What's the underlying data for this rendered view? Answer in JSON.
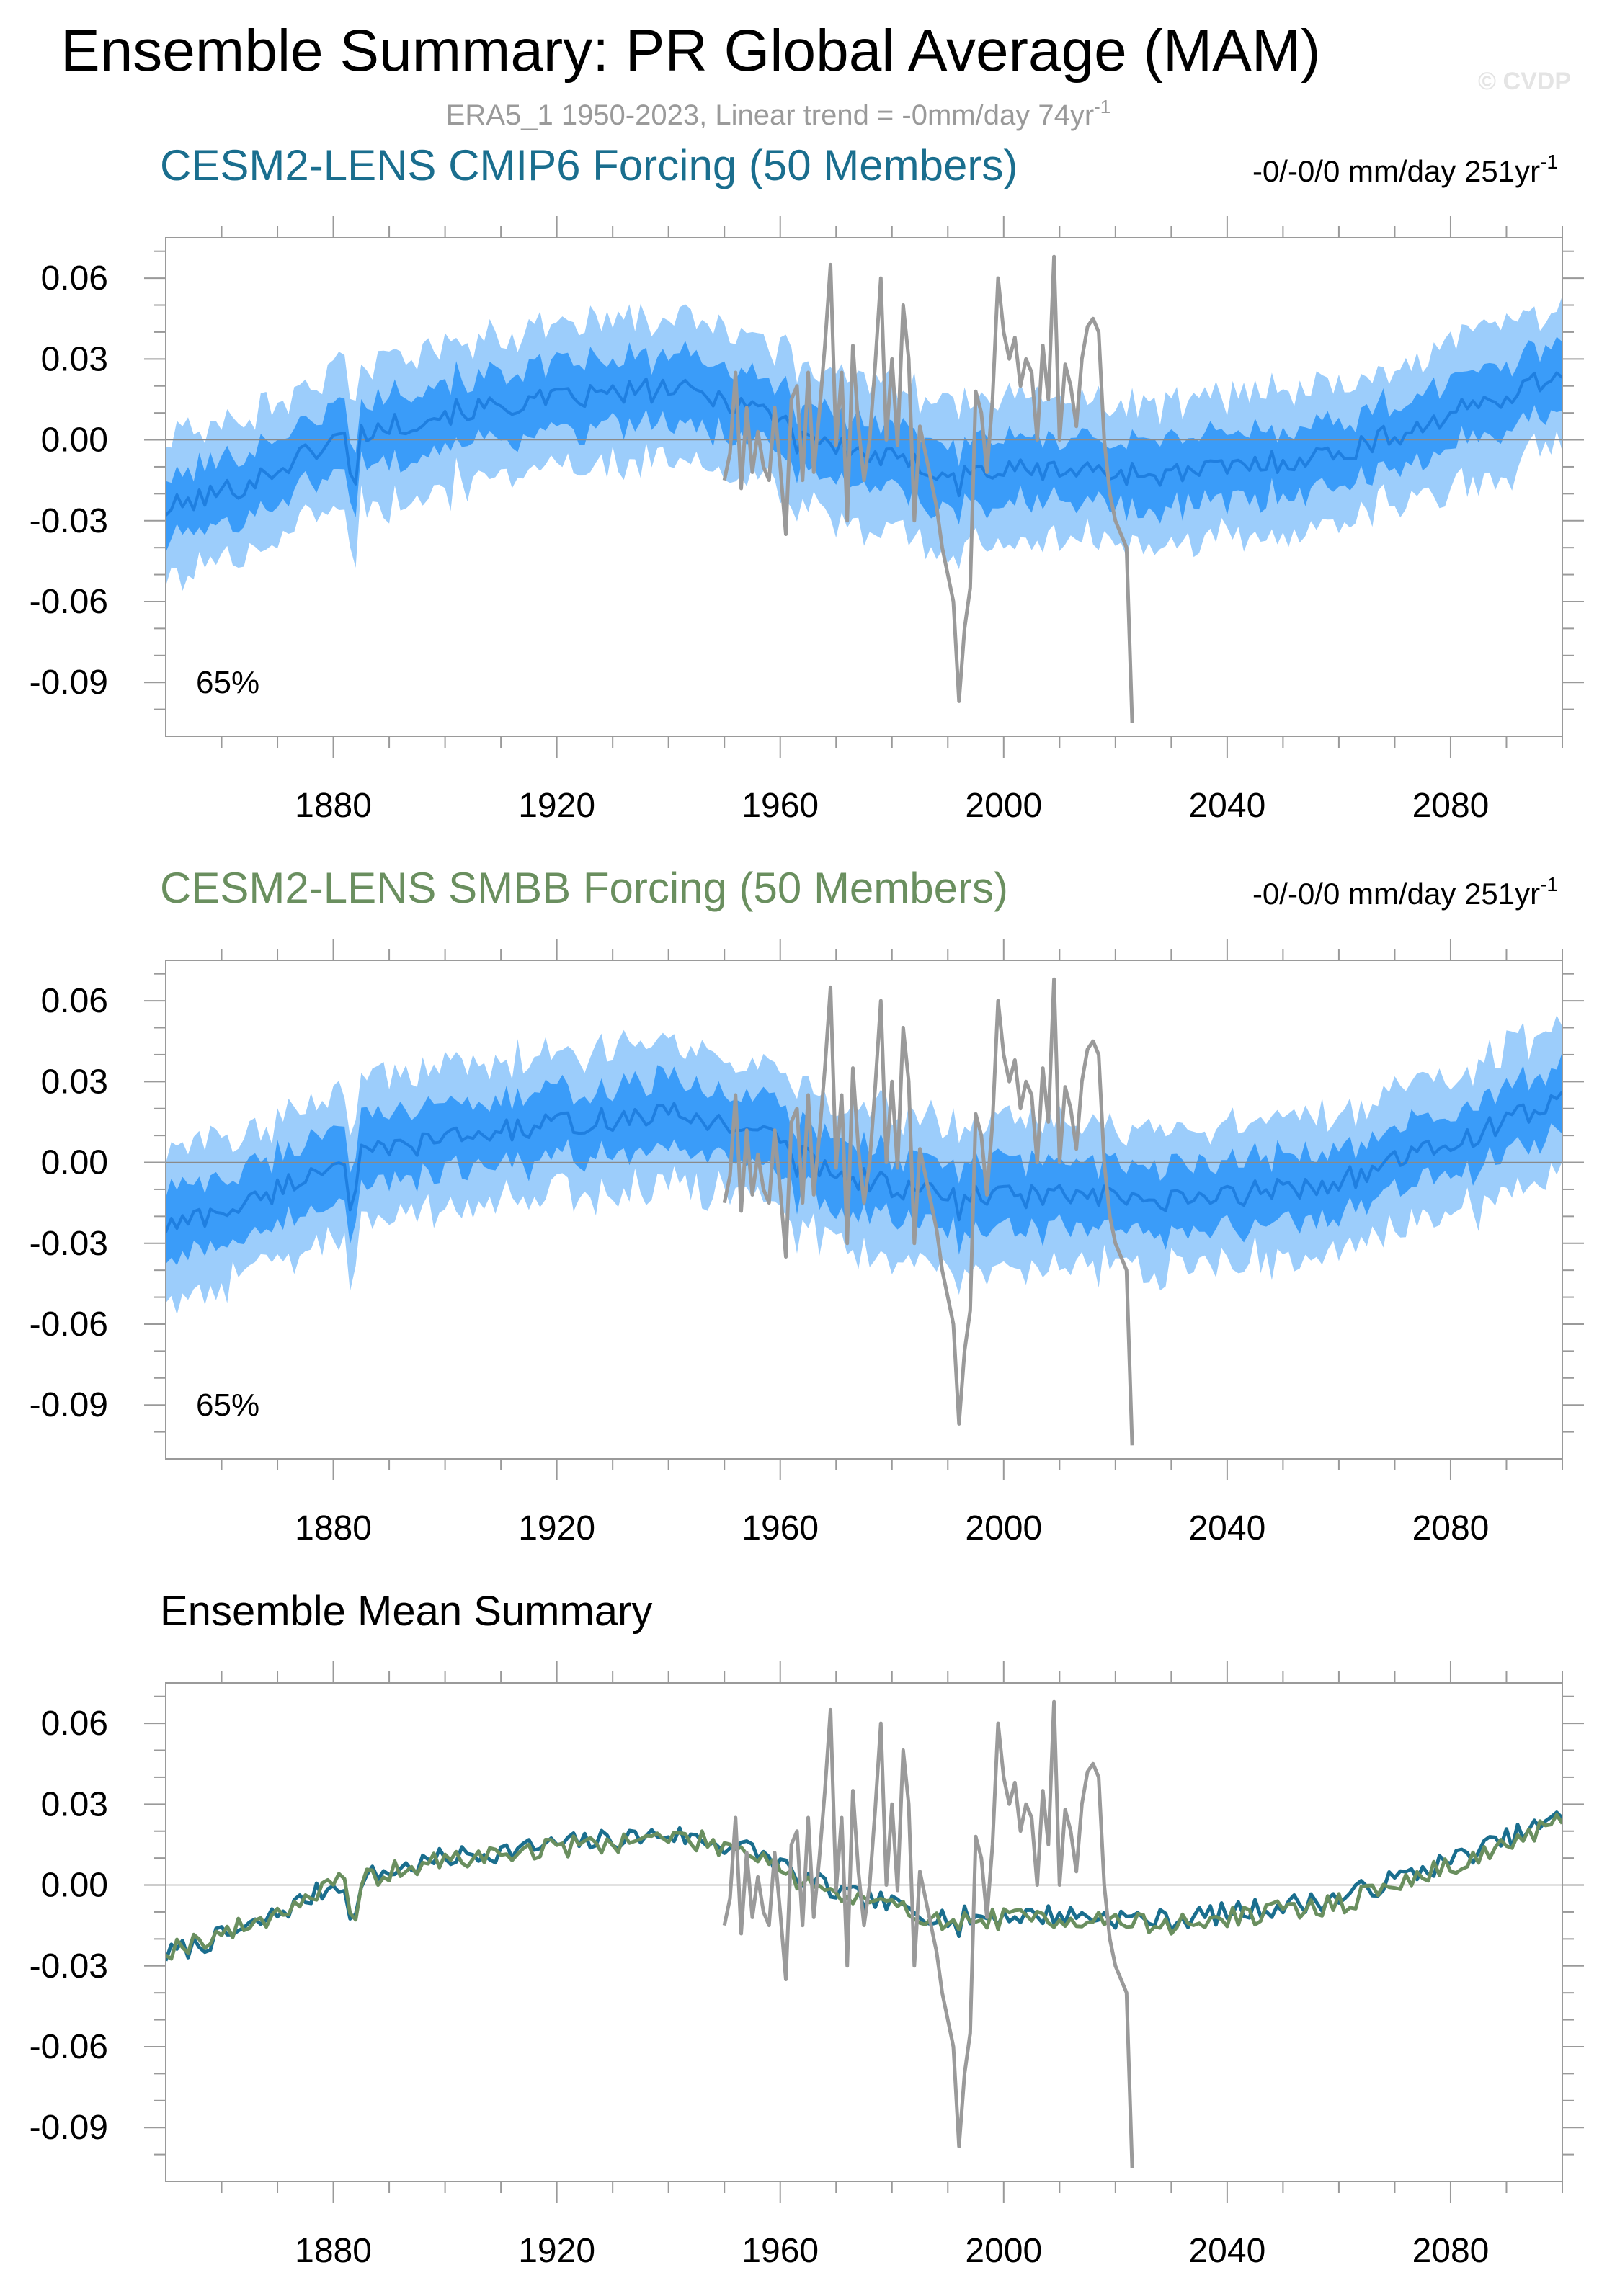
{
  "figure": {
    "title": "Ensemble Summary: PR Global Average (MAM)",
    "watermark": "© CVDP",
    "obs_label": "ERA5_1 1950-2023, Linear trend = -0mm/day 74yr",
    "obs_label_sup": "-1"
  },
  "colors": {
    "band_outer": "#9ccdfb",
    "band_inner": "#3a9cf9",
    "ens_mean": "#1f7fe0",
    "obs": "#9a9a9a",
    "cmip6": "#1a6e8e",
    "smbb": "#6a8f5f",
    "axis": "#9a9a9a",
    "zero": "#8a8a8a"
  },
  "chart_data": [
    {
      "type": "area",
      "title": "CESM2-LENS CMIP6 Forcing (50 Members)",
      "trend_label": "-0/-0/0 mm/day 251yr",
      "trend_sup": "-1",
      "percent_label": "65%",
      "xlabel": "",
      "ylabel": "",
      "xlim": [
        1850,
        2100
      ],
      "ylim": [
        -0.11,
        0.075
      ],
      "xticks": [
        1880,
        1920,
        1960,
        2000,
        2040,
        2080
      ],
      "xtick_labels": [
        "1880",
        "1920",
        "1960",
        "2000",
        "2040",
        "2080"
      ],
      "yticks": [
        0.06,
        0.03,
        0.0,
        -0.03,
        -0.06,
        -0.09
      ],
      "ytick_labels": [
        "0.06",
        "0.03",
        "0.00",
        "-0.03",
        "-0.06",
        "-0.09"
      ],
      "ensemble_mean_keypoints": {
        "x": [
          1850,
          1865,
          1880,
          1900,
          1920,
          1940,
          1955,
          1970,
          1990,
          2010,
          2030,
          2060,
          2080,
          2100
        ],
        "y": [
          -0.026,
          -0.016,
          0.0,
          0.01,
          0.015,
          0.019,
          0.013,
          -0.003,
          -0.012,
          -0.011,
          -0.013,
          -0.005,
          0.009,
          0.025
        ]
      },
      "band_halfwidth": {
        "inner": 0.012,
        "outer": 0.025
      },
      "series": [
        {
          "name": "Ensemble mean",
          "color_key": "ens_mean"
        },
        {
          "name": "ERA5_1",
          "color_key": "obs"
        }
      ]
    },
    {
      "type": "area",
      "title": "CESM2-LENS SMBB Forcing (50 Members)",
      "trend_label": "-0/-0/0 mm/day 251yr",
      "trend_sup": "-1",
      "percent_label": "65%",
      "xlabel": "",
      "ylabel": "",
      "xlim": [
        1850,
        2100
      ],
      "ylim": [
        -0.11,
        0.075
      ],
      "xticks": [
        1880,
        1920,
        1960,
        2000,
        2040,
        2080
      ],
      "xtick_labels": [
        "1880",
        "1920",
        "1960",
        "2000",
        "2040",
        "2080"
      ],
      "yticks": [
        0.06,
        0.03,
        0.0,
        -0.03,
        -0.06,
        -0.09
      ],
      "ytick_labels": [
        "0.06",
        "0.03",
        "0.00",
        "-0.03",
        "-0.06",
        "-0.09"
      ],
      "ensemble_mean_keypoints": {
        "x": [
          1850,
          1865,
          1880,
          1900,
          1920,
          1940,
          1955,
          1970,
          1990,
          2010,
          2030,
          2060,
          2080,
          2100
        ],
        "y": [
          -0.024,
          -0.015,
          0.0,
          0.009,
          0.014,
          0.018,
          0.013,
          -0.004,
          -0.013,
          -0.012,
          -0.015,
          -0.007,
          0.007,
          0.023
        ]
      },
      "band_halfwidth": {
        "inner": 0.012,
        "outer": 0.025
      },
      "series": [
        {
          "name": "Ensemble mean",
          "color_key": "ens_mean"
        },
        {
          "name": "ERA5_1",
          "color_key": "obs"
        }
      ]
    },
    {
      "type": "line",
      "title": "Ensemble Mean Summary",
      "xlabel": "",
      "ylabel": "",
      "xlim": [
        1850,
        2100
      ],
      "ylim": [
        -0.11,
        0.075
      ],
      "xticks": [
        1880,
        1920,
        1960,
        2000,
        2040,
        2080
      ],
      "xtick_labels": [
        "1880",
        "1920",
        "1960",
        "2000",
        "2040",
        "2080"
      ],
      "yticks": [
        0.06,
        0.03,
        0.0,
        -0.03,
        -0.06,
        -0.09
      ],
      "ytick_labels": [
        "0.06",
        "0.03",
        "0.00",
        "-0.03",
        "-0.06",
        "-0.09"
      ],
      "series": [
        {
          "name": "CESM2-LENS CMIP6 Forcing",
          "color_key": "cmip6"
        },
        {
          "name": "CESM2-LENS SMBB Forcing",
          "color_key": "smbb"
        },
        {
          "name": "ERA5_1",
          "color_key": "obs"
        }
      ]
    }
  ],
  "observations": {
    "name": "ERA5_1",
    "years": [
      1950,
      1951,
      1952,
      1953,
      1954,
      1955,
      1956,
      1957,
      1958,
      1959,
      1960,
      1961,
      1962,
      1963,
      1964,
      1965,
      1966,
      1967,
      1968,
      1969,
      1970,
      1971,
      1972,
      1973,
      1974,
      1975,
      1976,
      1977,
      1978,
      1979,
      1980,
      1981,
      1982,
      1983,
      1984,
      1985,
      1986,
      1987,
      1988,
      1989,
      1990,
      1991,
      1992,
      1993,
      1994,
      1995,
      1996,
      1997,
      1998,
      1999,
      2000,
      2001,
      2002,
      2003,
      2004,
      2005,
      2006,
      2007,
      2008,
      2009,
      2010,
      2011,
      2012,
      2013,
      2014,
      2015,
      2016,
      2017,
      2018,
      2019,
      2020,
      2021,
      2022,
      2023
    ],
    "values": [
      -0.015,
      -0.005,
      0.025,
      -0.018,
      0.012,
      -0.012,
      0.003,
      -0.01,
      -0.015,
      0.012,
      -0.01,
      -0.035,
      0.015,
      0.02,
      -0.015,
      0.025,
      -0.012,
      0.01,
      0.035,
      0.065,
      -0.002,
      0.025,
      -0.03,
      0.035,
      0.005,
      -0.015,
      0.0,
      0.028,
      0.06,
      0.0,
      0.03,
      -0.002,
      0.05,
      0.03,
      -0.03,
      0.005,
      -0.005,
      -0.015,
      -0.025,
      -0.04,
      -0.05,
      -0.06,
      -0.097,
      -0.07,
      -0.055,
      0.018,
      0.01,
      -0.012,
      0.015,
      0.06,
      0.04,
      0.03,
      0.038,
      0.02,
      0.03,
      0.025,
      0.0,
      0.035,
      0.015,
      0.068,
      0.0,
      0.028,
      0.02,
      0.005,
      0.03,
      0.042,
      0.045,
      0.04,
      0.0,
      -0.02,
      -0.03,
      -0.035,
      -0.04,
      -0.105
    ]
  }
}
